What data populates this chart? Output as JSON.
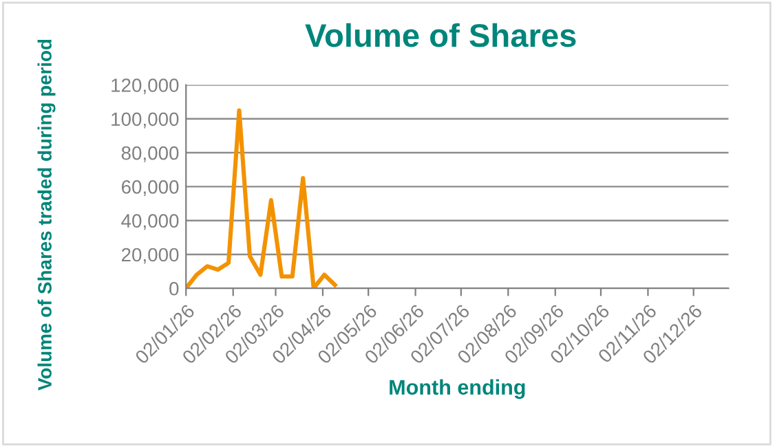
{
  "chart_data": {
    "type": "line",
    "title": "Volume of Shares",
    "xlabel": "Month ending",
    "ylabel": "Volume of Shares traded during period",
    "x": [
      "2026-01-02",
      "2026-01-09",
      "2026-01-16",
      "2026-01-23",
      "2026-01-30",
      "2026-02-06",
      "2026-02-13",
      "2026-02-20",
      "2026-02-27",
      "2026-03-06",
      "2026-03-13",
      "2026-03-20",
      "2026-03-27",
      "2026-04-03",
      "2026-04-10"
    ],
    "series": [
      {
        "color": "#f39200",
        "values": [
          0,
          8000,
          13000,
          11000,
          15000,
          105000,
          19000,
          8000,
          52000,
          7000,
          7000,
          65000,
          0,
          8000,
          2000
        ]
      }
    ],
    "xlim": [
      "2026-01-02",
      "2026-12-25"
    ],
    "xticks": [
      {
        "value": "2026-01-02",
        "label": "02/01/26"
      },
      {
        "value": "2026-02-02",
        "label": "02/02/26"
      },
      {
        "value": "2026-03-02",
        "label": "02/03/26"
      },
      {
        "value": "2026-04-02",
        "label": "02/04/26"
      },
      {
        "value": "2026-05-02",
        "label": "02/05/26"
      },
      {
        "value": "2026-06-02",
        "label": "02/06/26"
      },
      {
        "value": "2026-07-02",
        "label": "02/07/26"
      },
      {
        "value": "2026-08-02",
        "label": "02/08/26"
      },
      {
        "value": "2026-09-02",
        "label": "02/09/26"
      },
      {
        "value": "2026-10-02",
        "label": "02/10/26"
      },
      {
        "value": "2026-11-02",
        "label": "02/11/26"
      },
      {
        "value": "2026-12-02",
        "label": "02/12/26"
      }
    ],
    "ylim": [
      0,
      120000
    ],
    "yticks": [
      {
        "value": 0,
        "label": "0"
      },
      {
        "value": 20000,
        "label": "20,000"
      },
      {
        "value": 40000,
        "label": "40,000"
      },
      {
        "value": 60000,
        "label": "60,000"
      },
      {
        "value": 80000,
        "label": "80,000"
      },
      {
        "value": 100000,
        "label": "100,000"
      },
      {
        "value": 120000,
        "label": "120,000"
      }
    ],
    "grid": "y",
    "legend": false,
    "marker": "none",
    "line_style": "solid"
  }
}
